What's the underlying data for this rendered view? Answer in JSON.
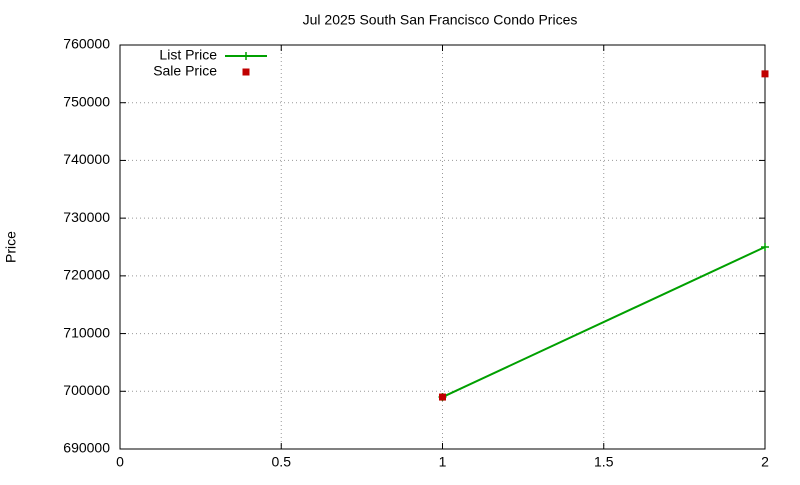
{
  "chart_data": {
    "type": "line",
    "title": "Jul 2025 South San Francisco Condo Prices",
    "y_label": "Price",
    "x": [
      1,
      2
    ],
    "series": [
      {
        "name": "List Price",
        "color": "#00a000",
        "style": "linespoints",
        "values": [
          699000,
          725000
        ]
      },
      {
        "name": "Sale Price",
        "color": "#c00000",
        "style": "points",
        "values": [
          699000,
          755000
        ]
      }
    ],
    "xlim": [
      0,
      2
    ],
    "xticks": [
      0,
      0.5,
      1,
      1.5,
      2
    ],
    "ylim": [
      690000,
      760000
    ],
    "yticks": [
      690000,
      700000,
      710000,
      720000,
      730000,
      740000,
      750000,
      760000
    ],
    "grid": true,
    "legend": "top-left"
  }
}
